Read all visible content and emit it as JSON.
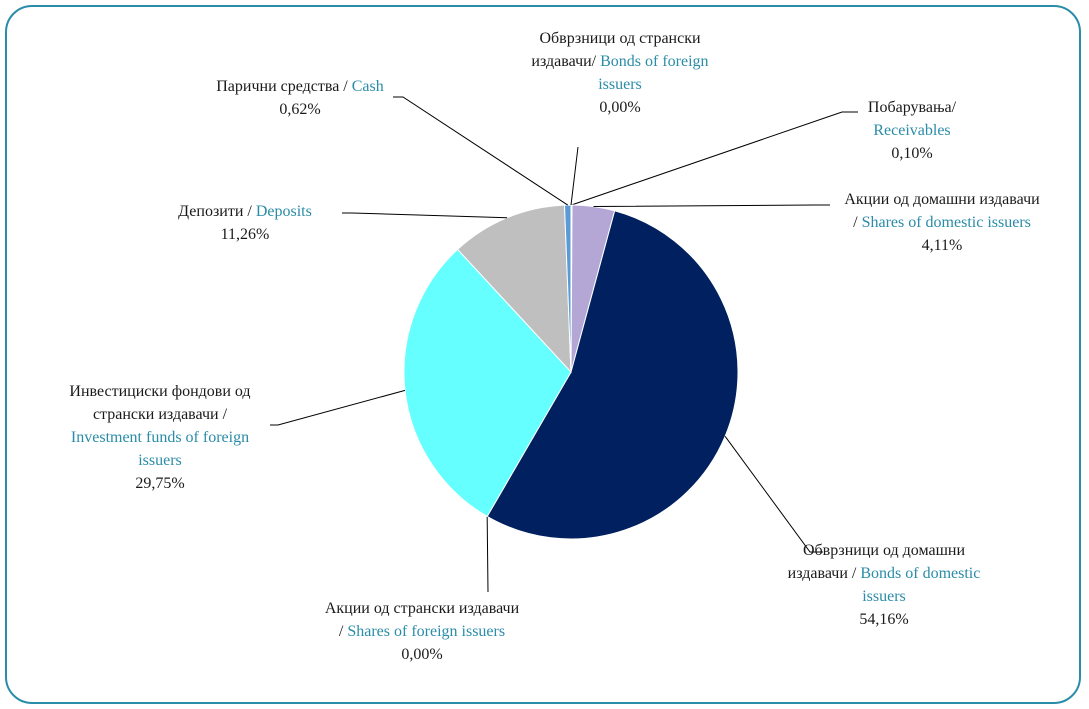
{
  "chart_data": {
    "type": "pie",
    "categories": [
      "Побарувања/",
      "Акции од домашни издавачи /",
      "Обврзници од домашни издавачи /",
      "Акции од странски издавачи /",
      "Инвестициски фондови од странски издавачи /",
      "Депозити /",
      "Парични средства /",
      "Обврзници од странски издавачи/"
    ],
    "categories_en": [
      "Receivables",
      "Shares of domestic issuers",
      "Bonds of domestic issuers",
      "Shares of foreign issuers",
      "Investment funds of foreign issuers",
      "Deposits",
      "Cash",
      "Bonds of foreign issuers"
    ],
    "values": [
      0.1,
      4.11,
      54.16,
      0.0,
      29.75,
      11.26,
      0.62,
      0.0
    ],
    "value_labels": [
      "0,10%",
      "4,11%",
      "54,16%",
      "0,00%",
      "29,75%",
      "11,26%",
      "0,62%",
      "0,00%"
    ],
    "colors": [
      "#8497b0",
      "#b4a7d6",
      "#002060",
      "#7f7f7f",
      "#66ffff",
      "#bfbfbf",
      "#5b9bd5",
      "#4472c4"
    ]
  }
}
